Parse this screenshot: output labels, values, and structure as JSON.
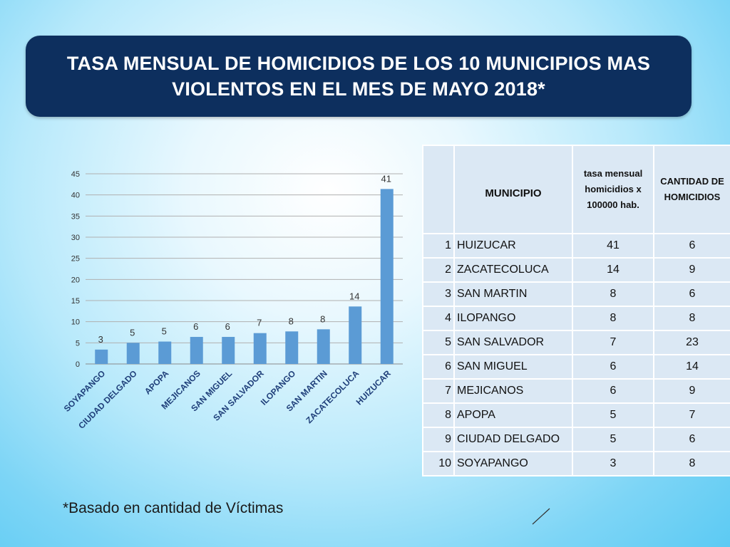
{
  "title": "TASA MENSUAL DE HOMICIDIOS DE LOS 10 MUNICIPIOS MAS\nVIOLENTOS EN EL MES  DE MAYO 2018*",
  "footnote": "*Basado en cantidad de Víctimas",
  "colors": {
    "title_bg": "#0d2f5e",
    "bar": "#5b9bd5",
    "table_cell": "#dbe8f4"
  },
  "chart_data": {
    "type": "bar",
    "categories": [
      "SOYAPANGO",
      "CIUDAD DELGADO",
      "APOPA",
      "MEJICANOS",
      "SAN MIGUEL",
      "SAN SALVADOR",
      "ILOPANGO",
      "SAN MARTIN",
      "ZACATECOLUCA",
      "HUIZUCAR"
    ],
    "values": [
      3.4,
      5.0,
      5.3,
      6.4,
      6.4,
      7.3,
      7.7,
      8.2,
      13.6,
      41.4
    ],
    "data_labels": [
      "3",
      "5",
      "5",
      "6",
      "6",
      "7",
      "8",
      "8",
      "14",
      "41"
    ],
    "ylim": [
      0,
      45
    ],
    "yticks": [
      "0",
      "5",
      "10",
      "15",
      "20",
      "25",
      "30",
      "35",
      "40",
      "45"
    ],
    "grid": true,
    "legend": "none"
  },
  "table": {
    "headers": [
      "",
      "MUNICIPIO",
      "tasa mensual homicidios x 100000 hab.",
      "CANTIDAD DE HOMICIDIOS"
    ],
    "rows": [
      [
        "1",
        "HUIZUCAR",
        "41",
        "6"
      ],
      [
        "2",
        "ZACATECOLUCA",
        "14",
        "9"
      ],
      [
        "3",
        "SAN MARTIN",
        "8",
        "6"
      ],
      [
        "4",
        "ILOPANGO",
        "8",
        "8"
      ],
      [
        "5",
        "SAN SALVADOR",
        "7",
        "23"
      ],
      [
        "6",
        "SAN MIGUEL",
        "6",
        "14"
      ],
      [
        "7",
        "MEJICANOS",
        "6",
        "9"
      ],
      [
        "8",
        "APOPA",
        "5",
        "7"
      ],
      [
        "9",
        "CIUDAD DELGADO",
        "5",
        "6"
      ],
      [
        "10",
        "SOYAPANGO",
        "3",
        "8"
      ]
    ]
  }
}
